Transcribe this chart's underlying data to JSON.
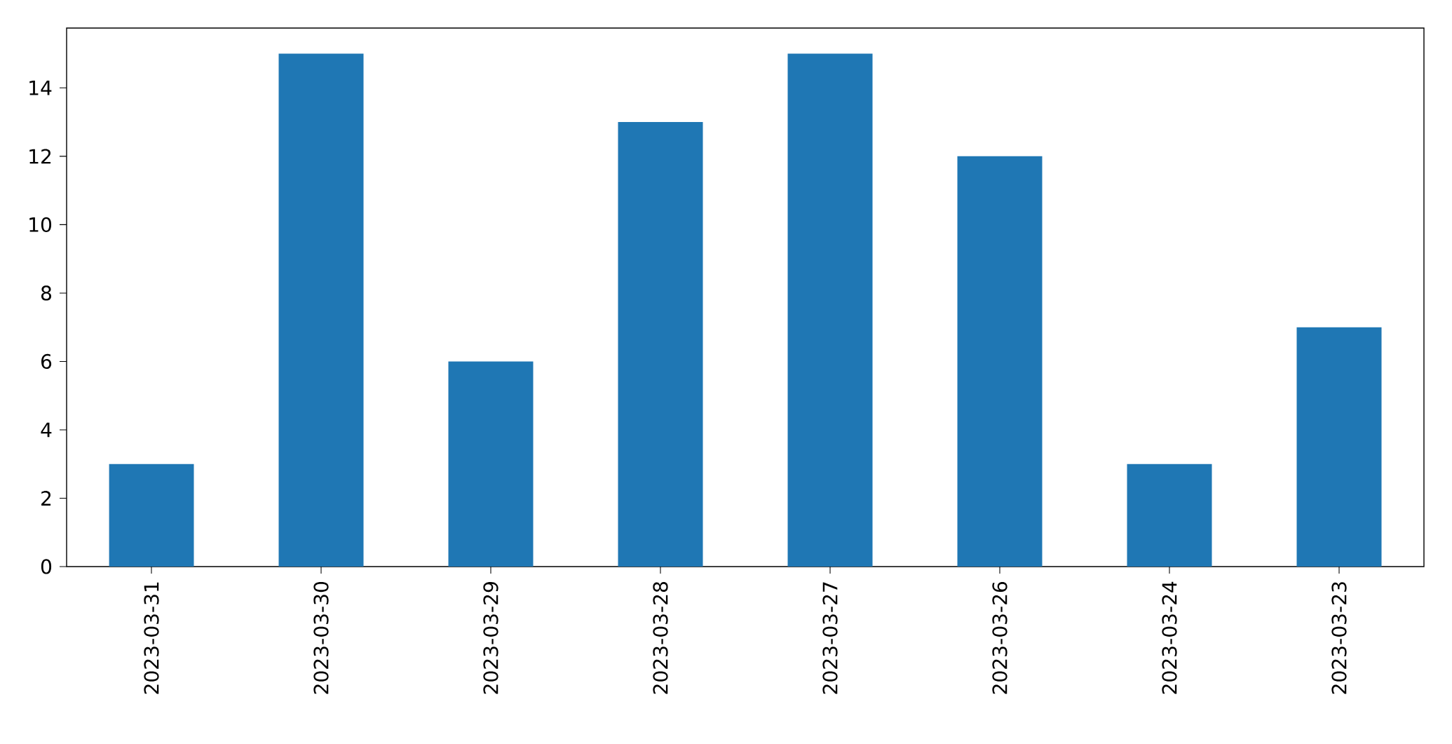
{
  "chart_data": {
    "type": "bar",
    "categories": [
      "2023-03-31",
      "2023-03-30",
      "2023-03-29",
      "2023-03-28",
      "2023-03-27",
      "2023-03-26",
      "2023-03-24",
      "2023-03-23"
    ],
    "values": [
      3,
      15,
      6,
      13,
      15,
      12,
      3,
      7
    ],
    "color": "#1f77b4",
    "ylim": [
      0,
      15.75
    ],
    "yticks": [
      0,
      2,
      4,
      6,
      8,
      10,
      12,
      14
    ]
  }
}
